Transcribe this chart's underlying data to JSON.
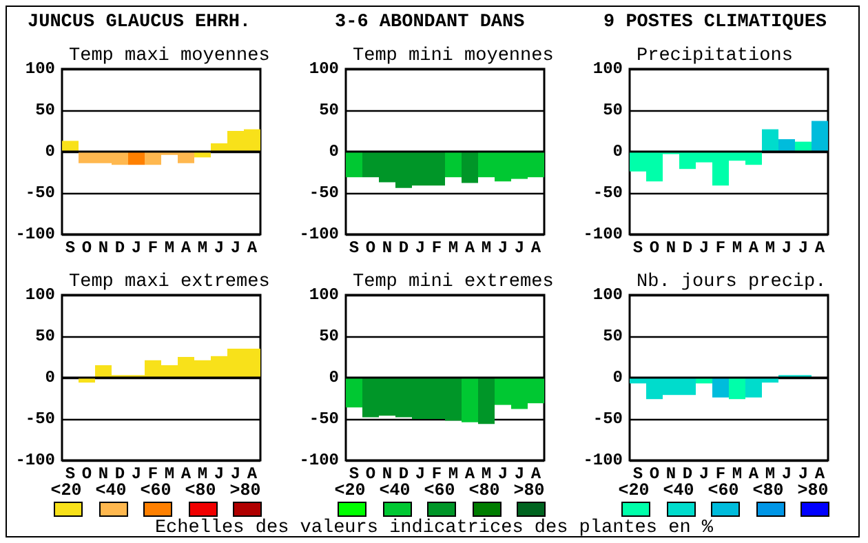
{
  "chart_data": [
    {
      "type": "bar",
      "title": "Temp maxi moyennes",
      "categories": [
        "S",
        "O",
        "N",
        "D",
        "J",
        "F",
        "M",
        "A",
        "M",
        "J",
        "J",
        "A"
      ],
      "values": [
        13,
        -14,
        -14,
        -16,
        -16,
        -16,
        -4,
        -14,
        -7,
        10,
        25,
        27
      ],
      "colors": [
        "#f8e11a",
        "#ffb84f",
        "#ffb84f",
        "#ffb84f",
        "#ff8000",
        "#ffb84f",
        "#ffb84f",
        "#ffb84f",
        "#f8e11a",
        "#f8e11a",
        "#f8e11a",
        "#f8e11a"
      ],
      "ylim": [
        -100,
        100
      ],
      "yticks": [
        -100,
        -50,
        0,
        50,
        100
      ],
      "grid": "y",
      "annotations": [
        "JUNCUS GLAUCUS EHRH.",
        "3-6 ABONDANT DANS",
        "9 POSTES CLIMATIQUES"
      ]
    },
    {
      "type": "bar",
      "title": "Temp mini moyennes",
      "categories": [
        "S",
        "O",
        "N",
        "D",
        "J",
        "F",
        "M",
        "A",
        "M",
        "J",
        "J",
        "A"
      ],
      "values": [
        -31,
        -31,
        -37,
        -44,
        -41,
        -41,
        -31,
        -38,
        -31,
        -36,
        -33,
        -31
      ],
      "colors": [
        "#00c832",
        "#009628",
        "#009628",
        "#009628",
        "#009628",
        "#009628",
        "#00c832",
        "#009628",
        "#00c832",
        "#00c832",
        "#00c832",
        "#00c832"
      ],
      "ylim": [
        -100,
        100
      ],
      "yticks": [
        -100,
        -50,
        0,
        50,
        100
      ],
      "grid": "y"
    },
    {
      "type": "bar",
      "title": "Precipitations",
      "categories": [
        "S",
        "O",
        "N",
        "D",
        "J",
        "F",
        "M",
        "A",
        "M",
        "J",
        "J",
        "A"
      ],
      "values": [
        -24,
        -36,
        -3,
        -21,
        -13,
        -41,
        -11,
        -16,
        27,
        15,
        12,
        37
      ],
      "colors": [
        "#00ffaa",
        "#00ffaa",
        "#00ffaa",
        "#00ffaa",
        "#00ffaa",
        "#00ffaa",
        "#00ffaa",
        "#00ffaa",
        "#00dccc",
        "#00bcdc",
        "#00ffaa",
        "#00bcdc"
      ],
      "ylim": [
        -100,
        100
      ],
      "yticks": [
        -100,
        -50,
        0,
        50,
        100
      ],
      "grid": "y"
    },
    {
      "type": "bar",
      "title": "Temp maxi extremes",
      "categories": [
        "S",
        "O",
        "N",
        "D",
        "J",
        "F",
        "M",
        "A",
        "M",
        "J",
        "J",
        "A"
      ],
      "values": [
        0,
        -6,
        15,
        3,
        3,
        21,
        15,
        25,
        21,
        26,
        35,
        35
      ],
      "colors": [
        "#f8e11a",
        "#f8e11a",
        "#f8e11a",
        "#f8e11a",
        "#f8e11a",
        "#f8e11a",
        "#f8e11a",
        "#f8e11a",
        "#f8e11a",
        "#f8e11a",
        "#f8e11a",
        "#f8e11a"
      ],
      "ylim": [
        -100,
        100
      ],
      "yticks": [
        -100,
        -50,
        0,
        50,
        100
      ],
      "grid": "y"
    },
    {
      "type": "bar",
      "title": "Temp mini extremes",
      "categories": [
        "S",
        "O",
        "N",
        "D",
        "J",
        "F",
        "M",
        "A",
        "M",
        "J",
        "J",
        "A"
      ],
      "values": [
        -36,
        -48,
        -46,
        -48,
        -50,
        -50,
        -52,
        -54,
        -56,
        -33,
        -38,
        -31
      ],
      "colors": [
        "#00c832",
        "#009628",
        "#009628",
        "#009628",
        "#009628",
        "#009628",
        "#009628",
        "#00c832",
        "#009628",
        "#00c832",
        "#00c832",
        "#00c832"
      ],
      "ylim": [
        -100,
        100
      ],
      "yticks": [
        -100,
        -50,
        0,
        50,
        100
      ],
      "grid": "y"
    },
    {
      "type": "bar",
      "title": "Nb. jours precip.",
      "categories": [
        "S",
        "O",
        "N",
        "D",
        "J",
        "F",
        "M",
        "A",
        "M",
        "J",
        "J",
        "A"
      ],
      "values": [
        -7,
        -26,
        -21,
        -21,
        -7,
        -24,
        -26,
        -24,
        -6,
        3,
        3,
        0
      ],
      "colors": [
        "#00dccc",
        "#00dccc",
        "#00dccc",
        "#00dccc",
        "#00ffaa",
        "#00bcdc",
        "#00ffaa",
        "#00dccc",
        "#00dccc",
        "#00dccc",
        "#00dccc",
        "#00dccc"
      ],
      "ylim": [
        -100,
        100
      ],
      "yticks": [
        -100,
        -50,
        0,
        50,
        100
      ],
      "grid": "y"
    },
    {
      "type": "other",
      "categories": [
        "<20",
        "<40",
        "<60",
        "<80",
        ">80"
      ],
      "colors": [
        "#f8e11a",
        "#ffb84f",
        "#ff8000",
        "#f00000",
        "#b00000"
      ]
    },
    {
      "type": "other",
      "categories": [
        "<20",
        "<40",
        "<60",
        "<80",
        ">80"
      ],
      "colors": [
        "#00ff00",
        "#00c832",
        "#009628",
        "#007d00",
        "#006420"
      ],
      "annotations": [
        "Echelles des valeurs indicatrices des plantes en %"
      ]
    },
    {
      "type": "other",
      "categories": [
        "<20",
        "<40",
        "<60",
        "<80",
        ">80"
      ],
      "colors": [
        "#00ffaa",
        "#00dccc",
        "#00bcdc",
        "#0096e6",
        "#0000ff"
      ]
    }
  ]
}
